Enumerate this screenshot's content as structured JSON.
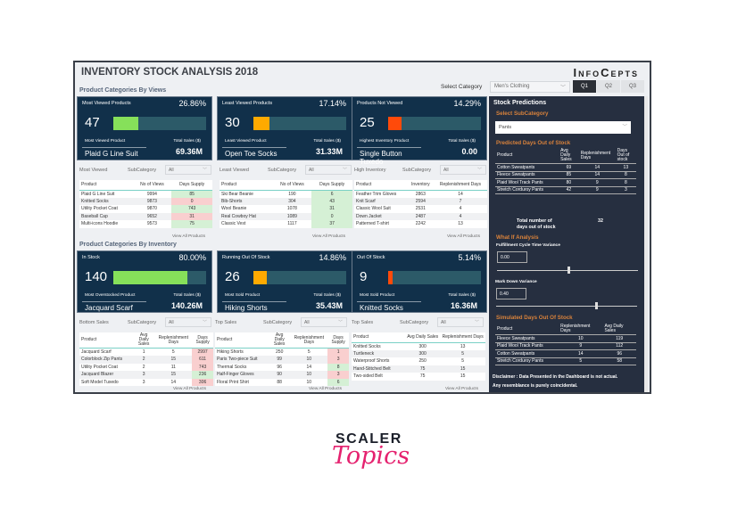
{
  "header": {
    "title": "INVENTORY STOCK ANALYSIS 2018",
    "logo": "InfoCepts",
    "select_category_label": "Select Category",
    "category_value": "Men's Clothing",
    "quarters": [
      "Q1",
      "Q2",
      "Q3"
    ],
    "active_quarter": "Q1"
  },
  "views_section": "Product Categories By Views",
  "inventory_section": "Product Categories By Inventory",
  "colors": {
    "green": "#86e05a",
    "orange": "#ffaa00",
    "red": "#ff4a0a",
    "card": "#11304a",
    "panel": "#262f40"
  },
  "cards": [
    {
      "title": "Most Viewed Products",
      "percent": "26.86%",
      "fill": 26.86,
      "color": "#86e05a",
      "count": "47",
      "left_label": "Most Viewed Product",
      "left_value": "Plaid G Line Suit",
      "right_label": "Total Sales ($)",
      "right_value": "69.36M"
    },
    {
      "title": "Least Viewed Products",
      "percent": "17.14%",
      "fill": 17.14,
      "color": "#ffaa00",
      "count": "30",
      "left_label": "Least Viewed Product",
      "left_value": "Open Toe Socks",
      "right_label": "Total Sales ($)",
      "right_value": "31.33M"
    },
    {
      "title": "Products Not Viewed",
      "percent": "14.29%",
      "fill": 14.29,
      "color": "#ff4a0a",
      "count": "25",
      "left_label": "Highest Inventory Product",
      "left_value": "Single Button Tuxedo",
      "right_label": "Total Sales ($)",
      "right_value": "0.00"
    },
    {
      "title": "In Stock",
      "percent": "80.00%",
      "fill": 80,
      "color": "#86e05a",
      "count": "140",
      "left_label": "Most Overstocked Product",
      "left_value": "Jacquard Scarf",
      "right_label": "Total Sales ($)",
      "right_value": "140.26M"
    },
    {
      "title": "Running Out Of Stock",
      "percent": "14.86%",
      "fill": 14.86,
      "color": "#ffaa00",
      "count": "26",
      "left_label": "Most Sold Product",
      "left_value": "Hiking Shorts",
      "right_label": "Total Sales ($)",
      "right_value": "35.43M"
    },
    {
      "title": "Out Of Stock",
      "percent": "5.14%",
      "fill": 5.14,
      "color": "#ff4a0a",
      "count": "9",
      "left_label": "Most Sold Product",
      "left_value": "Knitted Socks",
      "right_label": "Total Sales ($)",
      "right_value": "16.36M"
    }
  ],
  "tables": [
    {
      "name": "Most Viewed",
      "sub_label": "SubCategory",
      "sub_value": "All",
      "headers": [
        "Product",
        "No of Views",
        "Days Supply"
      ],
      "rows": [
        [
          "Plaid G Line Suit",
          "9994",
          "85"
        ],
        [
          "Knitted Socks",
          "9873",
          "0"
        ],
        [
          "Utility Pocket Coat",
          "9870",
          "743"
        ],
        [
          "Baseball Cap",
          "9652",
          "31"
        ],
        [
          "Multi-icons Hoodie",
          "9573",
          "75"
        ]
      ],
      "status": [
        "g",
        "r",
        "g",
        "r",
        "g"
      ],
      "link": "View All Products"
    },
    {
      "name": "Least Viewed",
      "sub_label": "SubCategory",
      "sub_value": "All",
      "headers": [
        "Product",
        "No of Views",
        "Days Supply"
      ],
      "rows": [
        [
          "Ski Bear Beanie",
          "190",
          "6"
        ],
        [
          "Bib-Shorts",
          "304",
          "43"
        ],
        [
          "Wool Beanie",
          "1078",
          "31"
        ],
        [
          "Real Cowboy Hat",
          "1089",
          "0"
        ],
        [
          "Classic Vest",
          "1117",
          "37"
        ]
      ],
      "status": [
        "g",
        "g",
        "g",
        "g",
        "g"
      ],
      "link": "View All Products"
    },
    {
      "name": "High Inventory",
      "sub_label": "SubCategory",
      "sub_value": "All",
      "headers": [
        "Product",
        "Inventory",
        "Replenishment Days"
      ],
      "rows": [
        [
          "Feather Trim Gloves",
          "2863",
          "14"
        ],
        [
          "Knit Scarf",
          "2594",
          "7"
        ],
        [
          "Classic Wool Suit",
          "2531",
          "4"
        ],
        [
          "Down Jacket",
          "2487",
          "4"
        ],
        [
          "Patterned T-shirt",
          "2242",
          "13"
        ]
      ],
      "status": [],
      "link": "View All Products"
    },
    {
      "name": "Bottom Sales",
      "sub_label": "SubCategory",
      "sub_value": "All",
      "headers": [
        "Product",
        "Avg Daily Sales",
        "Replenishment Days",
        "Days Supply"
      ],
      "rows": [
        [
          "Jacquard Scarf",
          "1",
          "5",
          "2997"
        ],
        [
          "Colorblock Zip Pants",
          "2",
          "15",
          "611"
        ],
        [
          "Utility Pocket Coat",
          "2",
          "11",
          "743"
        ],
        [
          "Jacquard Blazer",
          "3",
          "15",
          "236"
        ],
        [
          "Soft Model Tuxedo",
          "3",
          "14",
          "306"
        ]
      ],
      "status": [
        "r",
        "r",
        "r",
        "g",
        "r"
      ],
      "link": "View All Products"
    },
    {
      "name": "Top Sales",
      "sub_label": "SubCategory",
      "sub_value": "All",
      "headers": [
        "Product",
        "Avg Daily Sales",
        "Replenishment Days",
        "Days Supply"
      ],
      "rows": [
        [
          "Hiking Shorts",
          "250",
          "5",
          "1"
        ],
        [
          "Paris Two-piece Suit",
          "99",
          "10",
          "3"
        ],
        [
          "Thermal Socks",
          "96",
          "14",
          "8"
        ],
        [
          "Half-Finger Gloves",
          "90",
          "10",
          "3"
        ],
        [
          "Floral Print Shirt",
          "88",
          "10",
          "6"
        ]
      ],
      "status": [
        "r",
        "r",
        "g",
        "r",
        "g"
      ],
      "link": "View All Products"
    },
    {
      "name": "Top Sales",
      "sub_label": "SubCategory",
      "sub_value": "All",
      "headers": [
        "Product",
        "Avg Daily Sales",
        "Replenishment Days"
      ],
      "rows": [
        [
          "Knitted Socks",
          "300",
          "13"
        ],
        [
          "Turtleneck",
          "300",
          "5"
        ],
        [
          "Waterproof Shorts",
          "250",
          "5"
        ],
        [
          "Hand-Stitched Belt",
          "75",
          "15"
        ],
        [
          "Two-sided Belt",
          "75",
          "15"
        ]
      ],
      "status": [],
      "link": "View All Products"
    }
  ],
  "predictions": {
    "title": "Stock Predictions",
    "sub_label": "Select SubCategory",
    "sub_value": "Pants",
    "pred_title": "Predicted Days Out of Stock",
    "pred_headers": [
      "Product",
      "Avg Daily Sales",
      "Replenishment Days",
      "Days Out of stock"
    ],
    "pred_rows": [
      [
        "Cotton Sweatpants",
        "69",
        "14",
        "13"
      ],
      [
        "Fleece Sweatpants",
        "85",
        "14",
        "8"
      ],
      [
        "Plaid Wool Track Pants",
        "80",
        "9",
        "8"
      ],
      [
        "Stretch Corduroy Pants",
        "42",
        "9",
        "3"
      ]
    ],
    "total_label": "Total number of days out of stock",
    "total_value": "32",
    "whatif_title": "What If Analysis",
    "fulfil_label": "Fulfillment Cycle Time Variance",
    "fulfil_value": "0.00",
    "fulfil_pos": 0.5,
    "markdown_label": "Mark Down Variance",
    "markdown_value": "0.40",
    "markdown_pos": 0.7,
    "sim_title": "Simulated Days Out Of Stock",
    "sim_headers": [
      "Product",
      "Replenishment Days",
      "Avg Daily Sales"
    ],
    "sim_rows": [
      [
        "Fleece Sweatpants",
        "10",
        "119"
      ],
      [
        "Plaid Wool Track Pants",
        "9",
        "112"
      ],
      [
        "Cotton Sweatpants",
        "14",
        "96"
      ],
      [
        "Stretch Corduroy Pants",
        "5",
        "58"
      ]
    ],
    "disclaimer1": "Disclaimer : Data Presented in the Dashboard is not actual.",
    "disclaimer2": "Any resemblance is purely coincidental."
  },
  "brand": {
    "line1": "SCALER",
    "line2": "Topics"
  }
}
